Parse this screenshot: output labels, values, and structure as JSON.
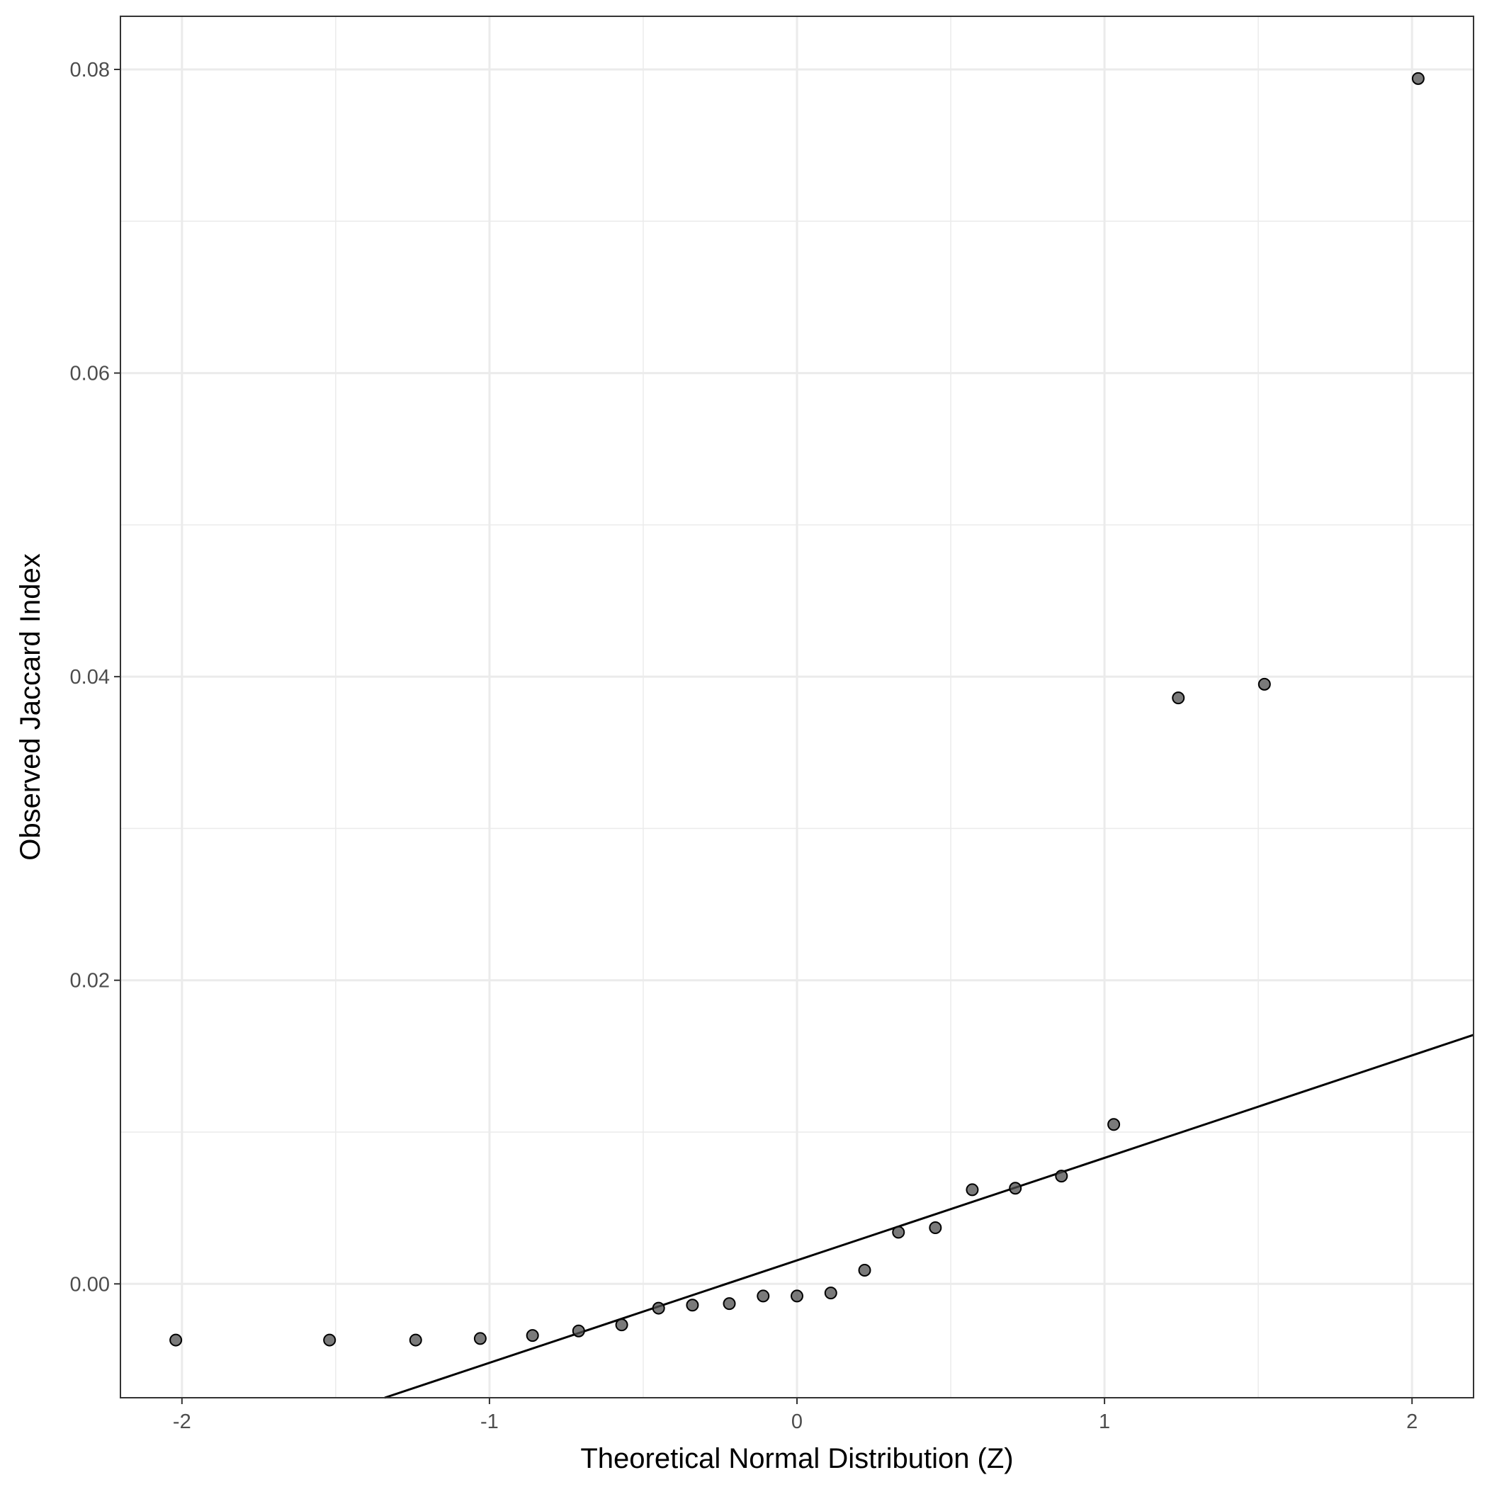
{
  "chart_data": {
    "type": "scatter",
    "title": "",
    "xlabel": "Theoretical Normal Distribution (Z)",
    "ylabel": "Observed Jaccard Index",
    "xlim": [
      -2.2,
      2.2
    ],
    "ylim": [
      -0.0075,
      0.0835
    ],
    "x_ticks": [
      -2,
      -1,
      0,
      1,
      2
    ],
    "x_tick_labels": [
      "-2",
      "-1",
      "0",
      "1",
      "2"
    ],
    "y_ticks": [
      0.0,
      0.02,
      0.04,
      0.06,
      0.08
    ],
    "y_tick_labels": [
      "0.00",
      "0.02",
      "0.04",
      "0.06",
      "0.08"
    ],
    "grid": true,
    "point_color": "#4d4d4d",
    "line_color": "#000000",
    "points": [
      {
        "x": -2.02,
        "y": -0.0037
      },
      {
        "x": -1.52,
        "y": -0.0037
      },
      {
        "x": -1.24,
        "y": -0.0037
      },
      {
        "x": -1.03,
        "y": -0.0036
      },
      {
        "x": -0.86,
        "y": -0.0034
      },
      {
        "x": -0.71,
        "y": -0.0031
      },
      {
        "x": -0.57,
        "y": -0.0027
      },
      {
        "x": -0.45,
        "y": -0.0016
      },
      {
        "x": -0.34,
        "y": -0.0014
      },
      {
        "x": -0.22,
        "y": -0.0013
      },
      {
        "x": -0.11,
        "y": -0.0008
      },
      {
        "x": 0.0,
        "y": -0.0008
      },
      {
        "x": 0.11,
        "y": -0.0006
      },
      {
        "x": 0.22,
        "y": 0.0009
      },
      {
        "x": 0.33,
        "y": 0.0034
      },
      {
        "x": 0.45,
        "y": 0.0037
      },
      {
        "x": 0.57,
        "y": 0.0062
      },
      {
        "x": 0.71,
        "y": 0.0063
      },
      {
        "x": 0.86,
        "y": 0.0071
      },
      {
        "x": 1.03,
        "y": 0.0105
      },
      {
        "x": 1.24,
        "y": 0.0386
      },
      {
        "x": 1.52,
        "y": 0.0395
      },
      {
        "x": 2.02,
        "y": 0.0794
      }
    ],
    "reference_line": {
      "intercept": 0.00155,
      "slope": 0.00675
    }
  }
}
